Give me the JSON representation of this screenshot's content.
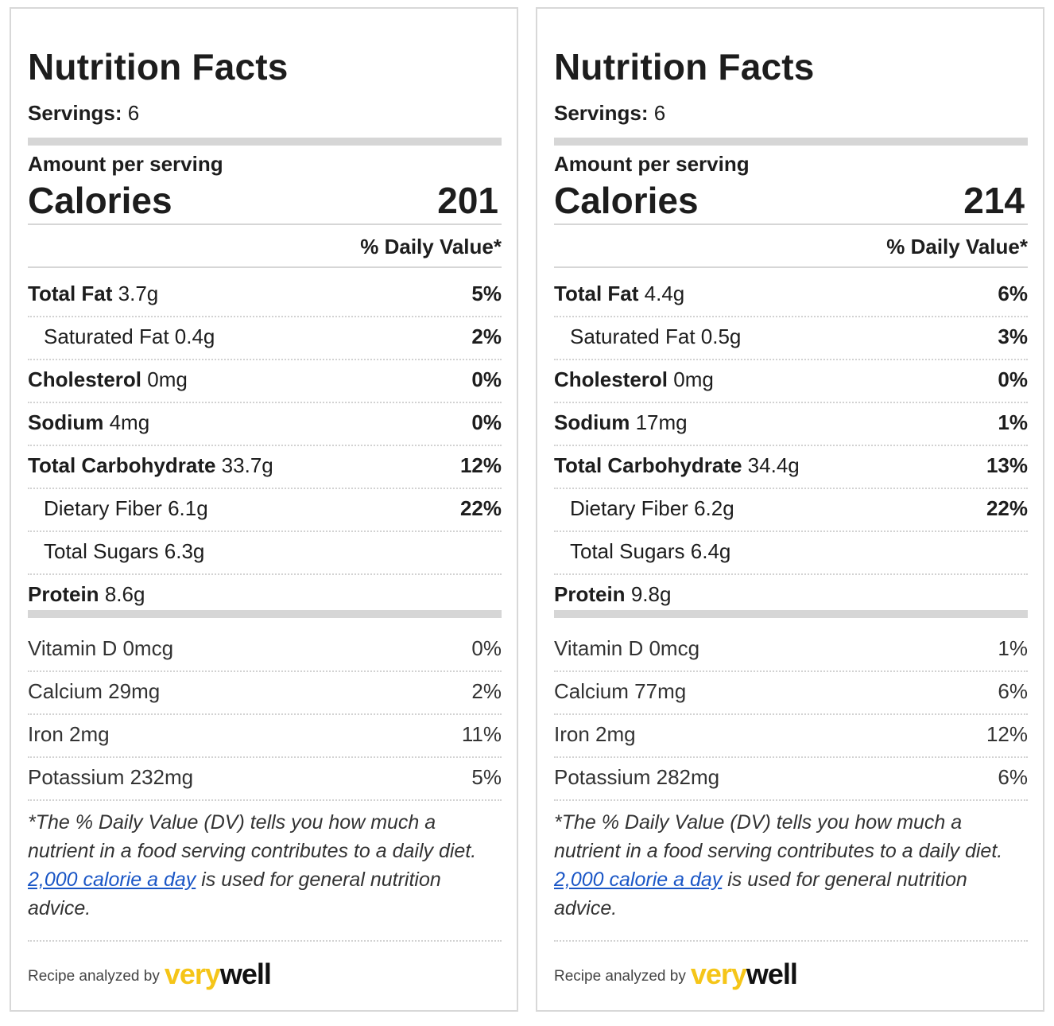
{
  "colors": {
    "logo_yellow": "#f5c518",
    "link_blue": "#1a56c6",
    "divider_gray": "#d6d6d6"
  },
  "panels": [
    {
      "title": "Nutrition Facts",
      "servings_label": "Servings:",
      "servings_value": "6",
      "amount_label": "Amount per serving",
      "calories_label": "Calories",
      "calories_value": "201",
      "dv_header": "% Daily Value*",
      "nutrients": [
        {
          "label": "Total Fat",
          "amount": "3.7g",
          "pct": "5%"
        },
        {
          "label": "Saturated Fat",
          "amount": "0.4g",
          "pct": "2%"
        },
        {
          "label": "Cholesterol",
          "amount": "0mg",
          "pct": "0%"
        },
        {
          "label": "Sodium",
          "amount": "4mg",
          "pct": "0%"
        },
        {
          "label": "Total Carbohydrate",
          "amount": "33.7g",
          "pct": "12%"
        },
        {
          "label": "Dietary Fiber",
          "amount": "6.1g",
          "pct": "22%"
        },
        {
          "label": "Total Sugars",
          "amount": "6.3g",
          "pct": ""
        },
        {
          "label": "Protein",
          "amount": "8.6g",
          "pct": ""
        }
      ],
      "vitamins": [
        {
          "label": "Vitamin D",
          "amount": "0mcg",
          "pct": "0%"
        },
        {
          "label": "Calcium",
          "amount": "29mg",
          "pct": "2%"
        },
        {
          "label": "Iron",
          "amount": "2mg",
          "pct": "11%"
        },
        {
          "label": "Potassium",
          "amount": "232mg",
          "pct": "5%"
        }
      ],
      "footnote_pre": "*The % Daily Value (DV) tells you how much a nutrient in a food serving contributes to a daily diet. ",
      "footnote_link": "2,000 calorie a day",
      "footnote_post": " is used for general nutrition advice.",
      "analyzed_by": "Recipe analyzed by",
      "logo_very": "very",
      "logo_well": "well"
    },
    {
      "title": "Nutrition Facts",
      "servings_label": "Servings:",
      "servings_value": "6",
      "amount_label": "Amount per serving",
      "calories_label": "Calories",
      "calories_value": "214",
      "dv_header": "% Daily Value*",
      "nutrients": [
        {
          "label": "Total Fat",
          "amount": "4.4g",
          "pct": "6%"
        },
        {
          "label": "Saturated Fat",
          "amount": "0.5g",
          "pct": "3%"
        },
        {
          "label": "Cholesterol",
          "amount": "0mg",
          "pct": "0%"
        },
        {
          "label": "Sodium",
          "amount": "17mg",
          "pct": "1%"
        },
        {
          "label": "Total Carbohydrate",
          "amount": "34.4g",
          "pct": "13%"
        },
        {
          "label": "Dietary Fiber",
          "amount": "6.2g",
          "pct": "22%"
        },
        {
          "label": "Total Sugars",
          "amount": "6.4g",
          "pct": ""
        },
        {
          "label": "Protein",
          "amount": "9.8g",
          "pct": ""
        }
      ],
      "vitamins": [
        {
          "label": "Vitamin D",
          "amount": "0mcg",
          "pct": "1%"
        },
        {
          "label": "Calcium",
          "amount": "77mg",
          "pct": "6%"
        },
        {
          "label": "Iron",
          "amount": "2mg",
          "pct": "12%"
        },
        {
          "label": "Potassium",
          "amount": "282mg",
          "pct": "6%"
        }
      ],
      "footnote_pre": "*The % Daily Value (DV) tells you how much a nutrient in a food serving contributes to a daily diet. ",
      "footnote_link": "2,000 calorie a day",
      "footnote_post": " is used for general nutrition advice.",
      "analyzed_by": "Recipe analyzed by",
      "logo_very": "very",
      "logo_well": "well"
    }
  ]
}
